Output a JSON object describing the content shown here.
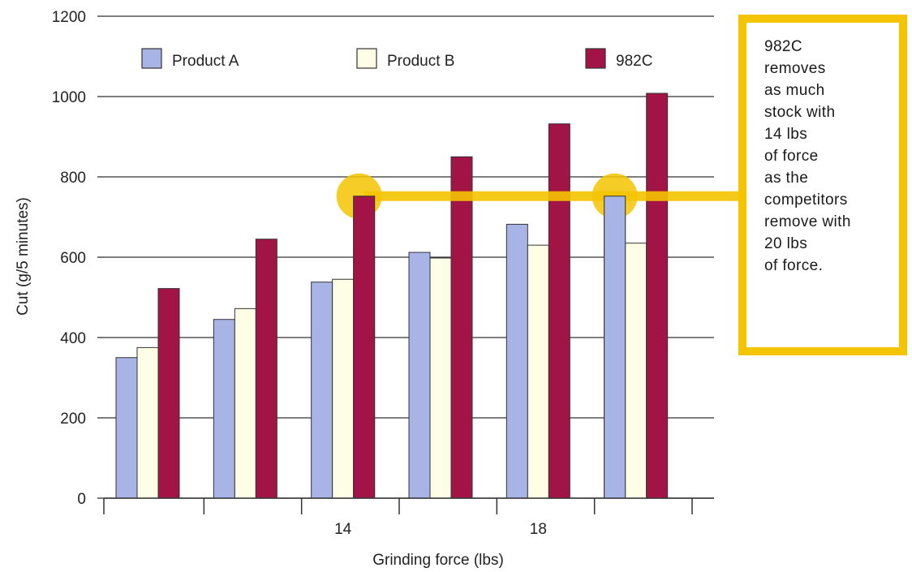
{
  "chart_data": {
    "type": "bar",
    "title": "",
    "xlabel": "Grinding force (lbs)",
    "ylabel": "Cut (g/5 minutes)",
    "ylim": [
      0,
      1200
    ],
    "yticks": [
      "0",
      "200",
      "400",
      "600",
      "800",
      "1000",
      "1200"
    ],
    "categories": [
      "",
      "",
      "14",
      "",
      "18",
      ""
    ],
    "grid": "horizontal",
    "legend_position": "top",
    "series": [
      {
        "name": "Product A",
        "color": "#a9b4e6",
        "values": [
          350,
          445,
          538,
          612,
          682,
          752
        ]
      },
      {
        "name": "Product B",
        "color": "#fefee6",
        "values": [
          375,
          472,
          545,
          598,
          630,
          635
        ]
      },
      {
        "name": "982C",
        "color": "#a31446",
        "values": [
          522,
          645,
          752,
          850,
          932,
          1008
        ]
      }
    ],
    "highlight": {
      "color": "#f5c400",
      "callout_text": "982C\nremoves\nas much\nstock with\n14 lbs\nof force\nas the\ncompetitors\nremove with\n20 lbs\nof force."
    }
  }
}
